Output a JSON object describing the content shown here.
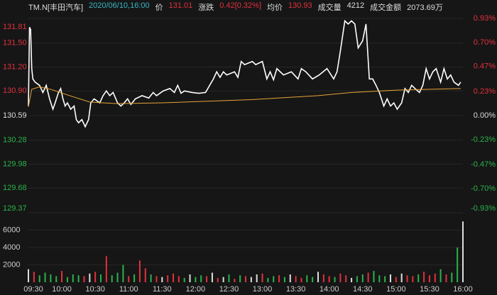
{
  "header": {
    "symbol": "TM.N[丰田汽车]",
    "datetime": "2020/06/10,16:00",
    "items": [
      {
        "label": "价",
        "value": "131.01"
      },
      {
        "label": "涨跌",
        "value": "0.42[0.32%]"
      },
      {
        "label": "均价",
        "value": "130.93"
      },
      {
        "label": "成交量",
        "value": "4212"
      },
      {
        "label": "成交金额",
        "value": "2073.69万"
      }
    ]
  },
  "chart_data": [
    {
      "type": "line",
      "up_color": "#e0323c",
      "down_color": "#2bb24c",
      "xlim": [
        0,
        390
      ],
      "xticks": [
        {
          "value": 0,
          "label": "09:30"
        },
        {
          "value": 30,
          "label": "10:00"
        },
        {
          "value": 60,
          "label": "10:30"
        },
        {
          "value": 90,
          "label": "11:00"
        },
        {
          "value": 120,
          "label": "11:30"
        },
        {
          "value": 150,
          "label": "12:00"
        },
        {
          "value": 180,
          "label": "12:30"
        },
        {
          "value": 210,
          "label": "13:00"
        },
        {
          "value": 240,
          "label": "13:30"
        },
        {
          "value": 270,
          "label": "14:00"
        },
        {
          "value": 300,
          "label": "14:30"
        },
        {
          "value": 330,
          "label": "15:00"
        },
        {
          "value": 360,
          "label": "15:30"
        },
        {
          "value": 390,
          "label": "16:00"
        }
      ],
      "ylim": [
        129.37,
        131.81
      ],
      "yticks": [
        131.81,
        {
          "value": 131.5,
          "label": "131.50"
        },
        {
          "value": 131.2,
          "label": "131.20"
        },
        {
          "value": 130.9,
          "label": "130.90"
        },
        130.59,
        130.28,
        129.98,
        129.68,
        129.37
      ],
      "y2lim": [
        -0.93,
        0.93
      ],
      "y2ticks": [
        {
          "value": 0.93,
          "label": "0.93%"
        },
        {
          "value": 0.7,
          "label": "0.70%"
        },
        {
          "value": 0.47,
          "label": "0.47%"
        },
        {
          "value": 0.23,
          "label": "0.23%"
        },
        {
          "value": 0,
          "label": "0.00%"
        },
        {
          "value": -0.23,
          "label": "-0.23%"
        },
        {
          "value": -0.47,
          "label": "-0.47%"
        },
        {
          "value": -0.7,
          "label": "-0.70%"
        },
        {
          "value": -0.93,
          "label": "-0.93%"
        }
      ],
      "series": [
        {
          "color": "#ffffff",
          "x": [
            0,
            1,
            2,
            3,
            4,
            6,
            10,
            13,
            16,
            19,
            22,
            24,
            27,
            29,
            31,
            33,
            35,
            38,
            41,
            43,
            45,
            48,
            51,
            54,
            56,
            59,
            64,
            67,
            70,
            73,
            76,
            80,
            83,
            86,
            89,
            92,
            96,
            102,
            108,
            112,
            115,
            121,
            127,
            131,
            134,
            137,
            140,
            147,
            153,
            159,
            166,
            169,
            172,
            175,
            178,
            185,
            188,
            191,
            194,
            201,
            204,
            210,
            214,
            217,
            220,
            223,
            229,
            236,
            242,
            245,
            249,
            255,
            261,
            268,
            274,
            277,
            280,
            284,
            287,
            290,
            293,
            296,
            300,
            303,
            306,
            309,
            312,
            315,
            319,
            322,
            325,
            328,
            331,
            335,
            338,
            341,
            344,
            347,
            351,
            354,
            357,
            360,
            363,
            366,
            370,
            373,
            376,
            379,
            382,
            386,
            388
          ],
          "values": [
            130.71,
            131.7,
            131.67,
            131.18,
            131.05,
            131.01,
            130.97,
            130.88,
            130.97,
            130.8,
            130.67,
            130.75,
            130.88,
            130.93,
            130.8,
            130.71,
            130.75,
            130.67,
            130.71,
            130.54,
            130.5,
            130.54,
            130.45,
            130.54,
            130.75,
            130.8,
            130.75,
            130.84,
            130.9,
            130.84,
            130.88,
            130.75,
            130.71,
            130.75,
            130.8,
            130.73,
            130.8,
            130.84,
            130.81,
            130.88,
            130.84,
            130.9,
            130.93,
            130.88,
            130.97,
            130.87,
            130.9,
            130.88,
            130.87,
            130.88,
            131.05,
            131.14,
            131.07,
            131.14,
            131.1,
            131.14,
            131.07,
            131.27,
            131.23,
            131.27,
            131.23,
            131.27,
            131.05,
            131.14,
            131.04,
            131.18,
            131.1,
            131.14,
            131.05,
            131.18,
            131.14,
            131.05,
            131.1,
            131.18,
            131.05,
            131.14,
            131.4,
            131.78,
            131.74,
            131.78,
            131.74,
            131.44,
            131.53,
            131.74,
            131.05,
            131.05,
            130.97,
            130.88,
            130.71,
            130.8,
            130.71,
            130.75,
            130.67,
            130.75,
            130.93,
            130.88,
            130.97,
            130.93,
            130.88,
            130.97,
            131.18,
            131.05,
            131.14,
            131.18,
            131.01,
            131.18,
            131.05,
            131.1,
            131.01,
            130.97,
            131.01
          ]
        },
        {
          "color": "#e8a33a",
          "x": [
            0,
            3,
            10,
            20,
            35,
            55,
            80,
            120,
            200,
            260,
            290,
            330,
            388
          ],
          "values": [
            130.7,
            130.92,
            130.95,
            130.92,
            130.85,
            130.76,
            130.74,
            130.75,
            130.79,
            130.84,
            130.88,
            130.91,
            130.93
          ]
        }
      ]
    },
    {
      "type": "bar",
      "up_color": "#e0323c",
      "down_color": "#2bb24c",
      "flat_color": "#dddddd",
      "xlim": [
        0,
        390
      ],
      "ylim": [
        0,
        8000
      ],
      "yticks": [
        2000,
        4000,
        6000
      ],
      "x": [
        0,
        5,
        10,
        15,
        20,
        25,
        30,
        35,
        40,
        45,
        50,
        55,
        60,
        65,
        70,
        75,
        80,
        85,
        90,
        95,
        100,
        105,
        110,
        115,
        120,
        125,
        130,
        135,
        140,
        145,
        150,
        155,
        160,
        165,
        170,
        175,
        180,
        185,
        190,
        195,
        200,
        205,
        210,
        215,
        220,
        225,
        230,
        235,
        240,
        245,
        250,
        255,
        260,
        265,
        270,
        275,
        280,
        285,
        290,
        295,
        300,
        305,
        310,
        315,
        320,
        325,
        330,
        335,
        340,
        345,
        350,
        355,
        360,
        365,
        370,
        375,
        380,
        385,
        390
      ],
      "values": [
        1500,
        1200,
        800,
        1100,
        900,
        700,
        1300,
        600,
        900,
        800,
        700,
        1000,
        1200,
        900,
        3000,
        800,
        1100,
        2000,
        700,
        900,
        2500,
        1600,
        900,
        700,
        600,
        800,
        1000,
        700,
        500,
        900,
        600,
        800,
        700,
        1100,
        500,
        600,
        900,
        400,
        800,
        700,
        600,
        900,
        1000,
        500,
        700,
        800,
        600,
        900,
        700,
        500,
        800,
        600,
        1200,
        900,
        700,
        600,
        1000,
        800,
        500,
        700,
        900,
        1100,
        1300,
        800,
        700,
        900,
        600,
        1000,
        800,
        700,
        900,
        1200,
        800,
        1000,
        1500,
        900,
        1100,
        4000,
        7000
      ]
    }
  ]
}
